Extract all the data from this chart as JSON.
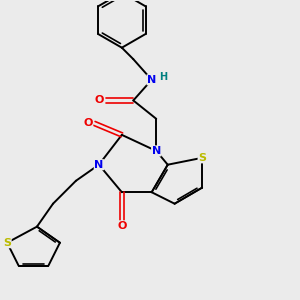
{
  "bg_color": "#ebebeb",
  "atom_colors": {
    "C": "#000000",
    "N": "#0000ee",
    "O": "#ee0000",
    "S": "#bbbb00",
    "H": "#008080"
  },
  "bond_color": "#000000",
  "figsize": [
    3.0,
    3.0
  ],
  "dpi": 100
}
